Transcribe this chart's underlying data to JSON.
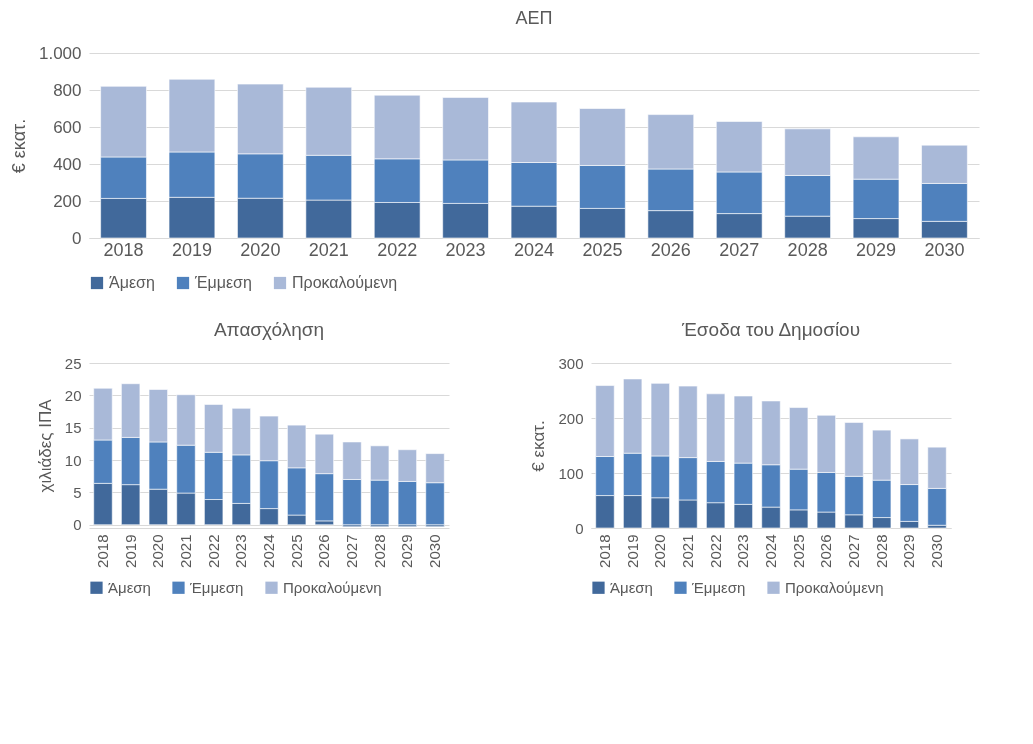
{
  "chart_data": [
    {
      "type": "bar",
      "title": "ΑΕΠ",
      "ylabel": "€ εκατ.",
      "stacked": true,
      "legend": "bottom",
      "grid": "y",
      "categories": [
        "2018",
        "2019",
        "2020",
        "2021",
        "2022",
        "2023",
        "2024",
        "2025",
        "2026",
        "2027",
        "2028",
        "2029",
        "2030"
      ],
      "ylim": [
        0,
        1000
      ],
      "yticks": [
        0,
        200,
        400,
        600,
        800,
        {
          "value": 1000,
          "label": "1.000"
        }
      ],
      "series": [
        {
          "name": "Άμεση",
          "color": "#41699b",
          "values": [
            214,
            220,
            215,
            205,
            192,
            187,
            172,
            160,
            148,
            132,
            118,
            105,
            90
          ]
        },
        {
          "name": "Έμμεση",
          "color": "#4f81bd",
          "values": [
            224,
            245,
            240,
            242,
            236,
            235,
            236,
            232,
            225,
            225,
            220,
            213,
            205
          ]
        },
        {
          "name": "Προκαλούμενη",
          "color": "#a9b9d8",
          "values": [
            382,
            393,
            377,
            368,
            344,
            338,
            327,
            308,
            294,
            273,
            252,
            229,
            207
          ]
        }
      ]
    },
    {
      "type": "bar",
      "title": "Απασχόληση",
      "ylabel": "χιλιάδες ΙΠΑ",
      "stacked": true,
      "legend": "bottom",
      "grid": "y",
      "categories": [
        "2018",
        "2019",
        "2020",
        "2021",
        "2022",
        "2023",
        "2024",
        "2025",
        "2026",
        "2027",
        "2028",
        "2029",
        "2030"
      ],
      "ylim": [
        -0.5,
        25
      ],
      "yticks": [
        0,
        5,
        10,
        15,
        20,
        25
      ],
      "series": [
        {
          "name": "Άμεση",
          "color": "#41699b",
          "values": [
            6.4,
            6.2,
            5.5,
            4.9,
            3.9,
            3.3,
            2.5,
            1.5,
            0.6,
            -0.3,
            -0.3,
            -0.3,
            -0.3
          ]
        },
        {
          "name": "Έμμεση",
          "color": "#4f81bd",
          "values": [
            6.7,
            7.3,
            7.3,
            7.4,
            7.3,
            7.5,
            7.4,
            7.3,
            7.3,
            7.0,
            6.9,
            6.7,
            6.5
          ]
        },
        {
          "name": "Προκαλούμενη",
          "color": "#a9b9d8",
          "values": [
            8.0,
            8.3,
            8.1,
            7.8,
            7.4,
            7.2,
            6.9,
            6.6,
            6.1,
            5.8,
            5.3,
            4.9,
            4.5
          ]
        }
      ]
    },
    {
      "type": "bar",
      "title": "Έσοδα του Δημοσίου",
      "ylabel": "€ εκατ.",
      "stacked": true,
      "legend": "bottom",
      "grid": "y",
      "categories": [
        "2018",
        "2019",
        "2020",
        "2021",
        "2022",
        "2023",
        "2024",
        "2025",
        "2026",
        "2027",
        "2028",
        "2029",
        "2030"
      ],
      "ylim": [
        0,
        300
      ],
      "yticks": [
        0,
        100,
        200,
        300
      ],
      "series": [
        {
          "name": "Άμεση",
          "color": "#41699b",
          "values": [
            59,
            59,
            55,
            51,
            46,
            43,
            38,
            33,
            29,
            24,
            19,
            12,
            5
          ]
        },
        {
          "name": "Έμμεση",
          "color": "#4f81bd",
          "values": [
            71,
            77,
            76,
            77,
            75,
            75,
            77,
            74,
            72,
            70,
            68,
            67,
            67
          ]
        },
        {
          "name": "Προκαλούμενη",
          "color": "#a9b9d8",
          "values": [
            129,
            135,
            132,
            130,
            123,
            122,
            116,
            112,
            104,
            98,
            91,
            83,
            75
          ]
        }
      ]
    }
  ]
}
